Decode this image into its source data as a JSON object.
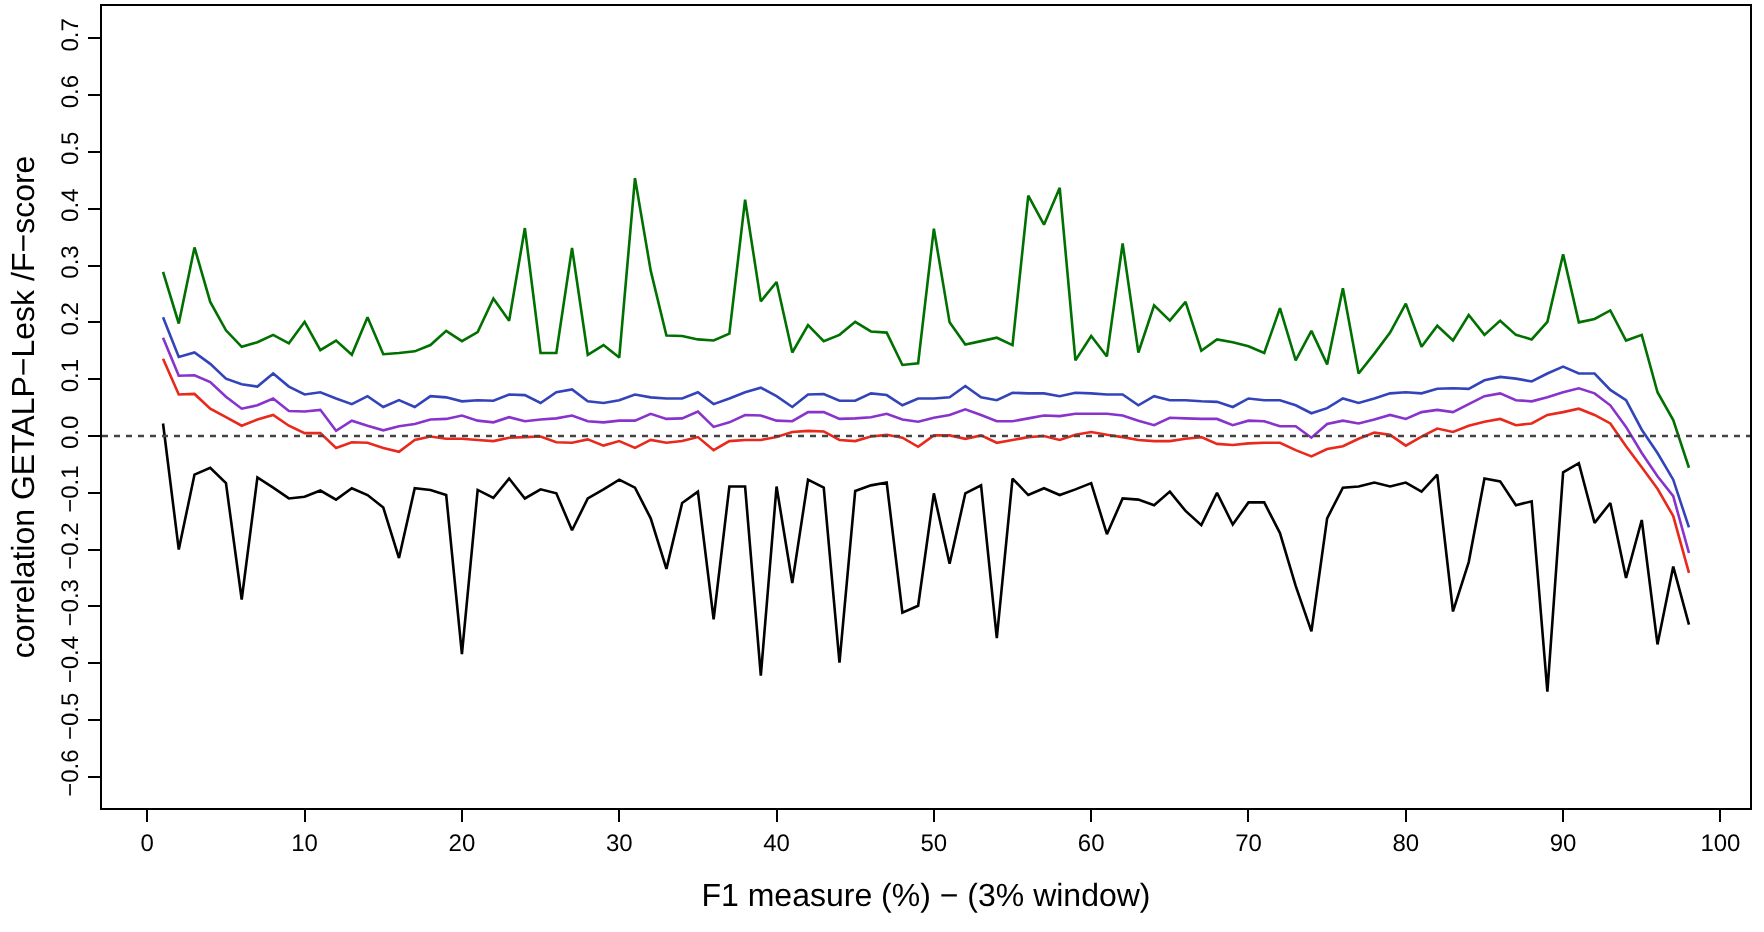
{
  "chart_data": {
    "type": "line",
    "xlabel": "F1 measure (%) − (3% window)",
    "ylabel": "correlation GETALP−Lesk /F−score",
    "x": [
      1,
      2,
      3,
      4,
      5,
      6,
      7,
      8,
      9,
      10,
      11,
      12,
      13,
      14,
      15,
      16,
      17,
      18,
      19,
      20,
      21,
      22,
      23,
      24,
      25,
      26,
      27,
      28,
      29,
      30,
      31,
      32,
      33,
      34,
      35,
      36,
      37,
      38,
      39,
      40,
      41,
      42,
      43,
      44,
      45,
      46,
      47,
      48,
      49,
      50,
      51,
      52,
      53,
      54,
      55,
      56,
      57,
      58,
      59,
      60,
      61,
      62,
      63,
      64,
      65,
      66,
      67,
      68,
      69,
      70,
      71,
      72,
      73,
      74,
      75,
      76,
      77,
      78,
      79,
      80,
      81,
      82,
      83,
      84,
      85,
      86,
      87,
      88,
      89,
      90,
      91,
      92,
      93,
      94,
      95,
      96,
      97,
      98
    ],
    "series": [
      {
        "color": "#007000",
        "values": [
          0.289,
          0.198,
          0.332,
          0.236,
          0.186,
          0.157,
          0.165,
          0.178,
          0.163,
          0.201,
          0.151,
          0.168,
          0.143,
          0.209,
          0.144,
          0.146,
          0.149,
          0.16,
          0.185,
          0.167,
          0.183,
          0.242,
          0.203,
          0.366,
          0.146,
          0.146,
          0.331,
          0.143,
          0.16,
          0.138,
          0.454,
          0.291,
          0.177,
          0.176,
          0.17,
          0.168,
          0.18,
          0.416,
          0.237,
          0.271,
          0.147,
          0.195,
          0.167,
          0.178,
          0.201,
          0.184,
          0.182,
          0.125,
          0.128,
          0.365,
          0.2,
          0.161,
          0.167,
          0.173,
          0.16,
          0.423,
          0.372,
          0.437,
          0.133,
          0.176,
          0.14,
          0.339,
          0.147,
          0.23,
          0.203,
          0.236,
          0.15,
          0.17,
          0.165,
          0.158,
          0.146,
          0.225,
          0.133,
          0.185,
          0.126,
          0.26,
          0.11,
          0.145,
          0.182,
          0.233,
          0.157,
          0.194,
          0.168,
          0.213,
          0.178,
          0.203,
          0.178,
          0.17,
          0.201,
          0.32,
          0.2,
          0.206,
          0.221,
          0.168,
          0.178,
          0.077,
          0.028,
          -0.056
        ]
      },
      {
        "color": "#3344bb",
        "values": [
          0.209,
          0.139,
          0.147,
          0.127,
          0.101,
          0.091,
          0.087,
          0.11,
          0.087,
          0.073,
          0.077,
          0.066,
          0.056,
          0.07,
          0.051,
          0.063,
          0.051,
          0.07,
          0.068,
          0.061,
          0.063,
          0.062,
          0.073,
          0.072,
          0.058,
          0.077,
          0.082,
          0.061,
          0.058,
          0.063,
          0.073,
          0.068,
          0.066,
          0.066,
          0.077,
          0.056,
          0.066,
          0.077,
          0.085,
          0.07,
          0.051,
          0.073,
          0.074,
          0.062,
          0.062,
          0.075,
          0.072,
          0.054,
          0.066,
          0.066,
          0.068,
          0.088,
          0.068,
          0.063,
          0.076,
          0.075,
          0.075,
          0.07,
          0.076,
          0.075,
          0.073,
          0.073,
          0.054,
          0.07,
          0.063,
          0.063,
          0.061,
          0.06,
          0.051,
          0.066,
          0.063,
          0.063,
          0.054,
          0.04,
          0.049,
          0.066,
          0.058,
          0.066,
          0.075,
          0.077,
          0.075,
          0.083,
          0.084,
          0.083,
          0.098,
          0.104,
          0.101,
          0.096,
          0.11,
          0.122,
          0.11,
          0.11,
          0.081,
          0.063,
          0.011,
          -0.03,
          -0.077,
          -0.161
        ]
      },
      {
        "color": "#8833cc",
        "values": [
          0.173,
          0.106,
          0.107,
          0.095,
          0.069,
          0.048,
          0.054,
          0.066,
          0.044,
          0.043,
          0.046,
          0.009,
          0.027,
          0.018,
          0.01,
          0.017,
          0.021,
          0.029,
          0.03,
          0.036,
          0.027,
          0.024,
          0.033,
          0.026,
          0.029,
          0.031,
          0.036,
          0.026,
          0.024,
          0.027,
          0.027,
          0.039,
          0.03,
          0.031,
          0.043,
          0.016,
          0.024,
          0.037,
          0.036,
          0.027,
          0.026,
          0.042,
          0.042,
          0.03,
          0.031,
          0.033,
          0.039,
          0.029,
          0.025,
          0.032,
          0.037,
          0.047,
          0.037,
          0.026,
          0.026,
          0.031,
          0.036,
          0.035,
          0.039,
          0.039,
          0.039,
          0.036,
          0.027,
          0.019,
          0.032,
          0.031,
          0.03,
          0.03,
          0.019,
          0.027,
          0.026,
          0.017,
          0.017,
          -0.003,
          0.021,
          0.027,
          0.022,
          0.029,
          0.037,
          0.03,
          0.042,
          0.046,
          0.042,
          0.056,
          0.07,
          0.075,
          0.063,
          0.061,
          0.068,
          0.077,
          0.084,
          0.075,
          0.054,
          0.016,
          -0.03,
          -0.071,
          -0.106,
          -0.206
        ]
      },
      {
        "color": "#e8291c",
        "values": [
          0.136,
          0.073,
          0.074,
          0.048,
          0.033,
          0.018,
          0.029,
          0.037,
          0.018,
          0.005,
          0.005,
          -0.021,
          -0.011,
          -0.012,
          -0.021,
          -0.028,
          -0.007,
          -0.001,
          -0.005,
          -0.005,
          -0.007,
          -0.009,
          -0.003,
          -0.002,
          -0.001,
          -0.011,
          -0.012,
          -0.006,
          -0.017,
          -0.009,
          -0.021,
          -0.007,
          -0.012,
          -0.009,
          -0.002,
          -0.025,
          -0.009,
          -0.007,
          -0.007,
          -0.002,
          0.007,
          0.009,
          0.008,
          -0.007,
          -0.009,
          -0.001,
          0.002,
          -0.003,
          -0.019,
          0.001,
          0.001,
          -0.005,
          0.001,
          -0.012,
          -0.007,
          -0.002,
          0,
          -0.007,
          0.002,
          0.007,
          0.002,
          -0.002,
          -0.007,
          -0.009,
          -0.009,
          -0.005,
          -0.002,
          -0.014,
          -0.016,
          -0.013,
          -0.012,
          -0.012,
          -0.025,
          -0.036,
          -0.023,
          -0.018,
          -0.005,
          0.006,
          0.002,
          -0.017,
          -0.001,
          0.013,
          0.007,
          0.018,
          0.025,
          0.03,
          0.019,
          0.022,
          0.037,
          0.042,
          0.048,
          0.037,
          0.022,
          -0.018,
          -0.055,
          -0.093,
          -0.141,
          -0.241
        ]
      },
      {
        "color": "#000000",
        "values": [
          0.022,
          -0.2,
          -0.068,
          -0.056,
          -0.083,
          -0.288,
          -0.073,
          -0.091,
          -0.11,
          -0.107,
          -0.096,
          -0.112,
          -0.092,
          -0.104,
          -0.126,
          -0.215,
          -0.092,
          -0.095,
          -0.104,
          -0.384,
          -0.095,
          -0.109,
          -0.075,
          -0.11,
          -0.094,
          -0.101,
          -0.166,
          -0.11,
          -0.094,
          -0.077,
          -0.091,
          -0.145,
          -0.234,
          -0.118,
          -0.098,
          -0.323,
          -0.089,
          -0.089,
          -0.422,
          -0.089,
          -0.259,
          -0.077,
          -0.091,
          -0.399,
          -0.097,
          -0.087,
          -0.082,
          -0.311,
          -0.299,
          -0.101,
          -0.225,
          -0.101,
          -0.087,
          -0.356,
          -0.075,
          -0.104,
          -0.092,
          -0.104,
          -0.094,
          -0.083,
          -0.173,
          -0.11,
          -0.112,
          -0.122,
          -0.098,
          -0.132,
          -0.157,
          -0.1,
          -0.156,
          -0.117,
          -0.117,
          -0.171,
          -0.264,
          -0.344,
          -0.145,
          -0.091,
          -0.089,
          -0.082,
          -0.089,
          -0.082,
          -0.098,
          -0.068,
          -0.309,
          -0.222,
          -0.075,
          -0.08,
          -0.122,
          -0.115,
          -0.45,
          -0.064,
          -0.048,
          -0.153,
          -0.118,
          -0.25,
          -0.148,
          -0.367,
          -0.23,
          -0.332
        ]
      }
    ],
    "xlim": [
      -2.88,
      101.88
    ],
    "xticks": [
      0,
      10,
      20,
      30,
      40,
      50,
      60,
      70,
      80,
      90,
      100
    ],
    "ylim": [
      -0.655,
      0.757
    ],
    "yticks": [
      {
        "value": -0.6,
        "label": "−0.6"
      },
      {
        "value": -0.5,
        "label": "−0.5"
      },
      {
        "value": -0.4,
        "label": "−0.4"
      },
      {
        "value": -0.3,
        "label": "−0.3"
      },
      {
        "value": -0.2,
        "label": "−0.2"
      },
      {
        "value": -0.1,
        "label": "−0.1"
      },
      {
        "value": 0,
        "label": "0.0"
      },
      0.1,
      0.2,
      0.3,
      0.4,
      0.5,
      0.6,
      0.7
    ],
    "ref_lines": [
      {
        "axis": "y",
        "value": 0,
        "color": "#444444",
        "line_style": "dotted"
      }
    ],
    "grid": false,
    "marker": "none",
    "line_style": "solid"
  }
}
